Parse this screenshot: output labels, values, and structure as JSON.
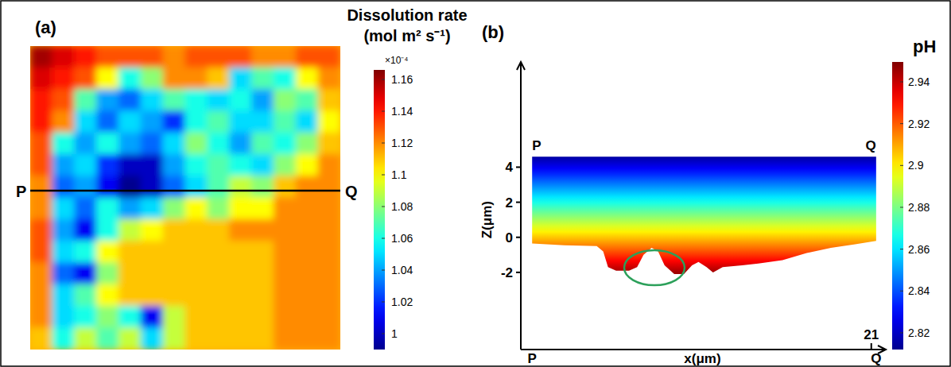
{
  "chart_data": [
    {
      "type": "heatmap",
      "title": "(a)",
      "cells": [
        [
          1.16,
          1.15,
          1.14,
          1.13,
          1.13,
          1.13,
          1.12,
          1.13,
          1.13,
          1.13,
          1.12,
          1.12,
          1.13,
          1.13
        ],
        [
          1.15,
          1.14,
          1.13,
          1.1,
          1.06,
          1.08,
          1.12,
          1.12,
          1.11,
          1.05,
          1.07,
          1.06,
          1.1,
          1.12
        ],
        [
          1.14,
          1.13,
          1.07,
          1.04,
          1.03,
          1.05,
          1.07,
          1.06,
          1.05,
          1.06,
          1.04,
          1.08,
          1.07,
          1.11
        ],
        [
          1.14,
          1.12,
          1.05,
          1.03,
          1.05,
          1.04,
          1.02,
          1.06,
          1.07,
          1.05,
          1.05,
          1.07,
          1.05,
          1.1
        ],
        [
          1.13,
          1.06,
          1.04,
          1.06,
          1.04,
          1.03,
          1.05,
          1.08,
          1.06,
          1.04,
          1.07,
          1.06,
          1.08,
          1.11
        ],
        [
          1.13,
          1.04,
          1.05,
          1.02,
          1.0,
          1.0,
          1.04,
          1.06,
          1.07,
          1.06,
          1.05,
          1.08,
          1.1,
          1.12
        ],
        [
          1.12,
          1.03,
          1.04,
          1.01,
          0.99,
          1.0,
          1.03,
          1.05,
          1.07,
          1.09,
          1.08,
          1.11,
          1.12,
          1.12
        ],
        [
          1.12,
          1.05,
          1.03,
          1.06,
          1.04,
          1.05,
          1.08,
          1.1,
          1.08,
          1.1,
          1.1,
          1.12,
          1.12,
          1.12
        ],
        [
          1.13,
          1.04,
          1.01,
          1.06,
          1.09,
          1.1,
          1.11,
          1.11,
          1.11,
          1.12,
          1.12,
          1.12,
          1.12,
          1.12
        ],
        [
          1.13,
          1.05,
          1.06,
          1.1,
          1.11,
          1.11,
          1.11,
          1.11,
          1.11,
          1.11,
          1.11,
          1.12,
          1.12,
          1.12
        ],
        [
          1.12,
          1.03,
          1.01,
          1.08,
          1.11,
          1.11,
          1.11,
          1.11,
          1.11,
          1.11,
          1.11,
          1.12,
          1.12,
          1.12
        ],
        [
          1.12,
          1.05,
          1.07,
          1.1,
          1.11,
          1.11,
          1.11,
          1.11,
          1.11,
          1.11,
          1.11,
          1.12,
          1.12,
          1.12
        ],
        [
          1.12,
          1.05,
          1.06,
          1.08,
          1.06,
          1.01,
          1.09,
          1.11,
          1.11,
          1.11,
          1.11,
          1.12,
          1.12,
          1.12
        ],
        [
          1.11,
          1.06,
          1.09,
          1.07,
          1.09,
          1.05,
          1.09,
          1.11,
          1.11,
          1.11,
          1.11,
          1.12,
          1.12,
          1.12
        ]
      ],
      "colorbar": {
        "title": "Dissolution rate",
        "label": "(mol m² s⁻¹)",
        "multiplier": "×10⁻⁴",
        "range": [
          0.99,
          1.166
        ],
        "ticks": [
          1,
          1.02,
          1.04,
          1.06,
          1.08,
          1.1,
          1.12,
          1.14,
          1.16
        ]
      },
      "annotations": [
        "P",
        "Q"
      ]
    },
    {
      "type": "area",
      "title": "(b)",
      "x_label": "x(μm)",
      "y_label": "Z(μm)",
      "x": [
        0,
        2,
        4,
        4.4,
        4.7,
        5.2,
        6.0,
        6.5,
        6.9,
        7.4,
        7.8,
        8.2,
        8.8,
        9.4,
        9.9,
        10.3,
        10.8,
        11.2,
        11.8,
        13,
        14,
        15.5,
        17,
        18.5,
        20,
        21.3
      ],
      "values": [
        -0.35,
        -0.45,
        -0.5,
        -0.8,
        -1.7,
        -1.9,
        -1.9,
        -1.7,
        -1.0,
        -0.6,
        -0.8,
        -1.6,
        -2.1,
        -2.1,
        -1.6,
        -1.4,
        -1.7,
        -2.0,
        -1.7,
        -1.6,
        -1.5,
        -1.3,
        -0.9,
        -0.6,
        -0.4,
        -0.2
      ],
      "xlim": [
        -0.7,
        21.8
      ],
      "ylim": [
        -6.4,
        10
      ],
      "xticks": [
        {
          "value": 0,
          "label": "P"
        },
        21,
        {
          "value": 21.3,
          "label": "Q"
        }
      ],
      "yticks": [
        -2,
        0,
        2,
        4
      ],
      "ph": {
        "z": [
          4.6,
          -2
        ],
        "values": [
          2.815,
          2.945
        ]
      },
      "colorbar": {
        "title": "pH",
        "range": [
          2.812,
          2.9495
        ],
        "ticks": [
          2.82,
          2.84,
          2.86,
          2.88,
          2.9,
          2.92,
          2.94
        ]
      },
      "annotations": [
        "P",
        "Q"
      ]
    }
  ]
}
